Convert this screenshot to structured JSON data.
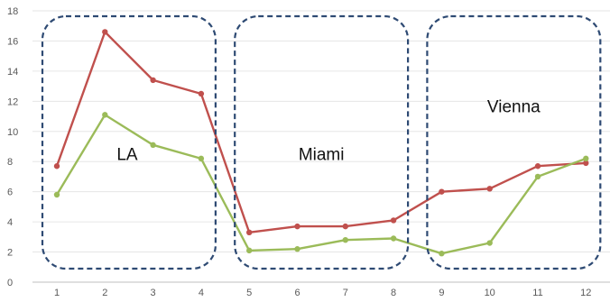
{
  "chart_data": {
    "type": "line",
    "title": "",
    "xlabel": "",
    "ylabel": "",
    "categories": [
      1,
      2,
      3,
      4,
      5,
      6,
      7,
      8,
      9,
      10,
      11,
      12
    ],
    "x_tick_labels": [
      "1",
      "2",
      "3",
      "4",
      "5",
      "6",
      "7",
      "8",
      "9",
      "10",
      "11",
      "12"
    ],
    "ylim": [
      0,
      18
    ],
    "y_ticks": [
      0,
      2,
      4,
      6,
      8,
      10,
      12,
      14,
      16,
      18
    ],
    "y_tick_labels": [
      "0",
      "2",
      "4",
      "6",
      "8",
      "10",
      "12",
      "14",
      "16",
      "18"
    ],
    "grid": true,
    "legend": "none",
    "series": [
      {
        "color": "#c0504d",
        "values": [
          7.7,
          16.6,
          13.4,
          12.5,
          3.3,
          3.7,
          3.7,
          4.1,
          6.0,
          6.2,
          7.7,
          7.9
        ]
      },
      {
        "color": "#9bbb59",
        "values": [
          5.8,
          11.1,
          9.1,
          8.2,
          2.1,
          2.2,
          2.8,
          2.9,
          1.9,
          2.6,
          7.0,
          8.2
        ]
      }
    ],
    "annotations": [
      {
        "label": "LA",
        "x_from": 1,
        "x_to": 4
      },
      {
        "label": "Miami",
        "x_from": 5,
        "x_to": 8
      },
      {
        "label": "Vienna",
        "x_from": 9,
        "x_to": 12
      }
    ],
    "annotation_box_color": "#2e4a73"
  }
}
